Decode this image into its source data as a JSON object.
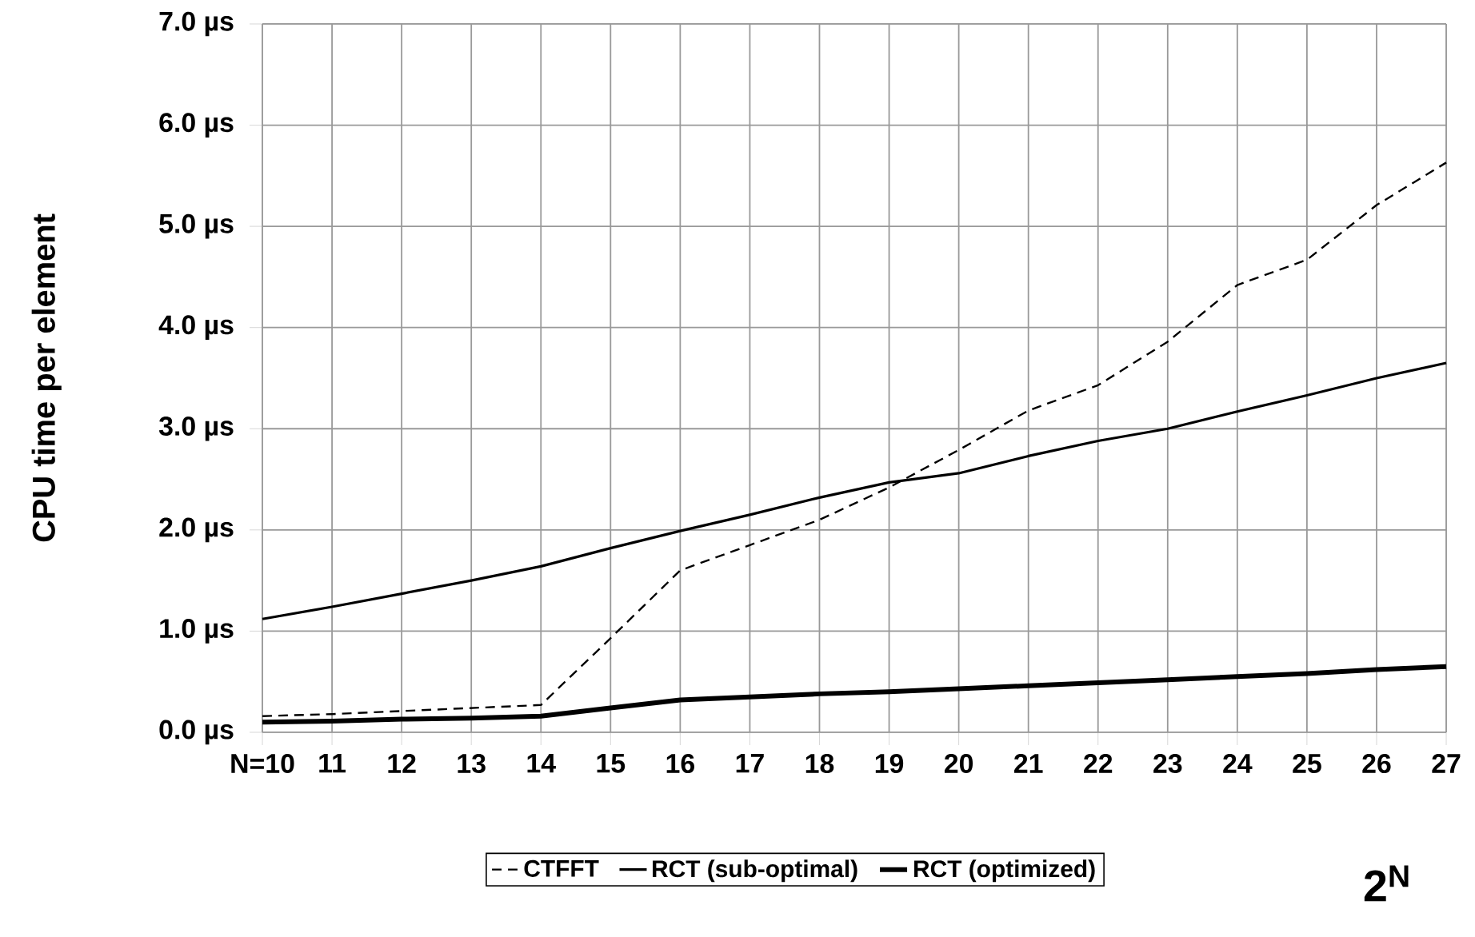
{
  "chart_data": {
    "type": "line",
    "ylabel": "CPU time per element",
    "xlabel": "2$^{N}$",
    "x": [
      10,
      11,
      12,
      13,
      14,
      15,
      16,
      17,
      18,
      19,
      20,
      21,
      22,
      23,
      24,
      25,
      26,
      27
    ],
    "series": [
      {
        "name": "CTFFT",
        "color": "#000000",
        "line_style": "dashed",
        "values": [
          0.16,
          0.18,
          0.21,
          0.24,
          0.27,
          0.93,
          1.6,
          1.85,
          2.1,
          2.42,
          2.79,
          3.18,
          3.43,
          3.86,
          4.42,
          4.67,
          5.21,
          5.63
        ]
      },
      {
        "name": "RCT (sub-optimal)",
        "color": "#000000",
        "line_style": "solid",
        "values": [
          1.12,
          1.24,
          1.37,
          1.5,
          1.64,
          1.82,
          1.99,
          2.15,
          2.32,
          2.47,
          2.56,
          2.73,
          2.88,
          3.0,
          3.17,
          3.33,
          3.5,
          3.65
        ]
      },
      {
        "name": "RCT (optimized)",
        "color": "#000000",
        "line_style": "solid",
        "values": [
          0.1,
          0.11,
          0.13,
          0.14,
          0.16,
          0.24,
          0.32,
          0.35,
          0.38,
          0.4,
          0.43,
          0.46,
          0.49,
          0.52,
          0.55,
          0.58,
          0.62,
          0.65
        ]
      }
    ],
    "xlim": [
      10,
      27
    ],
    "ylim": [
      0,
      7
    ],
    "xticks": [
      {
        "value": 10,
        "label": "N=10"
      },
      11,
      12,
      13,
      14,
      15,
      16,
      17,
      18,
      19,
      20,
      21,
      22,
      23,
      24,
      25,
      26,
      27
    ],
    "yticks": [
      {
        "value": 0,
        "label": "0.0 µs"
      },
      {
        "value": 1,
        "label": "1.0 µs"
      },
      {
        "value": 2,
        "label": "2.0 µs"
      },
      {
        "value": 3,
        "label": "3.0 µs"
      },
      {
        "value": 4,
        "label": "4.0 µs"
      },
      {
        "value": 5,
        "label": "5.0 µs"
      },
      {
        "value": 6,
        "label": "6.0 µs"
      },
      {
        "value": 7,
        "label": "7.0 µs"
      }
    ],
    "grid": true,
    "legend": "bottom",
    "marker": "none"
  }
}
